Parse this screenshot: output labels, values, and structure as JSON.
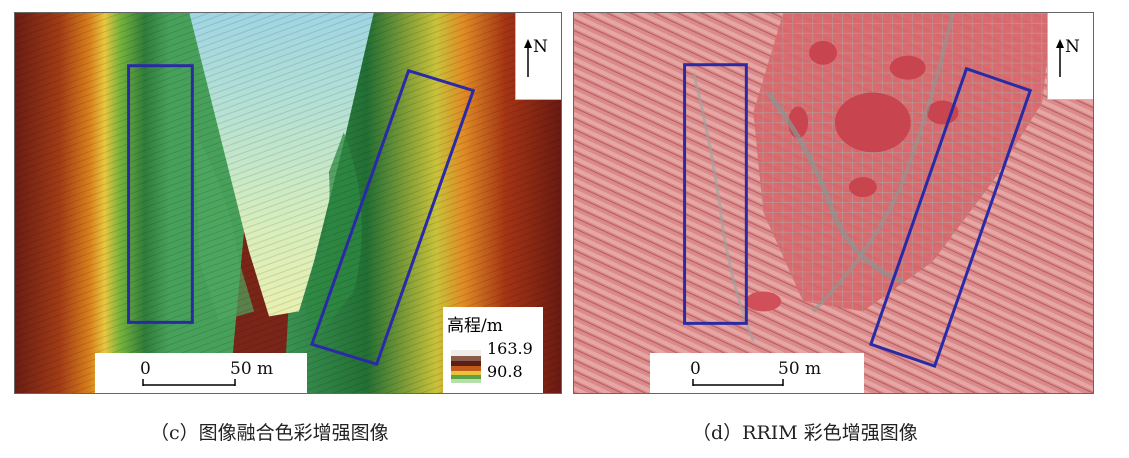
{
  "panel_c": {
    "caption": "（c）图像融合色彩增强图像",
    "north_label": "N",
    "scale": {
      "zero": "0",
      "fifty": "50 m"
    },
    "legend": {
      "title": "高程/m",
      "max": "163.9",
      "min": "90.8"
    }
  },
  "panel_d": {
    "caption": "（d）RRIM 彩色增强图像",
    "north_label": "N",
    "scale": {
      "zero": "0",
      "fifty": "50 m"
    }
  },
  "colors": {
    "box_outline": "#2a2aa6"
  }
}
